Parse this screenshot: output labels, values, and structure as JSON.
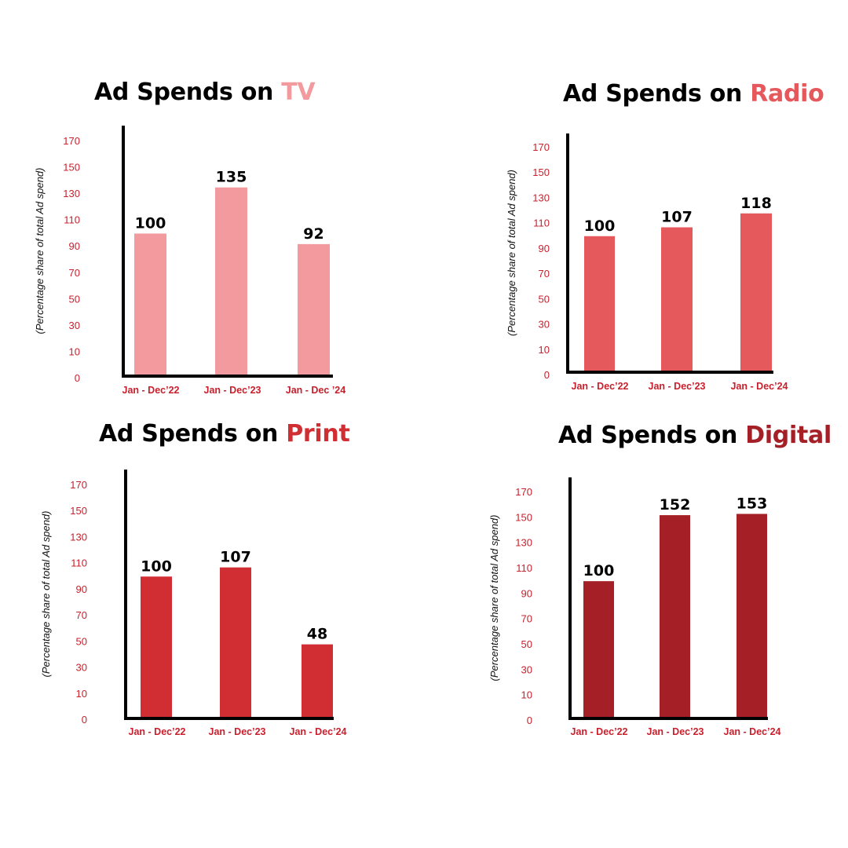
{
  "chart_data": [
    {
      "type": "bar",
      "title_prefix": "Ad Spends on ",
      "title_accent": "TV",
      "accent_color": "#f29a9d",
      "bar_color": "#f29a9d",
      "categories": [
        "Jan - Dec’22",
        "Jan - Dec’23",
        "Jan - Dec ’24"
      ],
      "values": [
        100,
        135,
        92
      ],
      "ylabel": "(Percentage share of total Ad spend)",
      "yticks": [
        0,
        10,
        30,
        50,
        70,
        90,
        110,
        130,
        150,
        170
      ],
      "ylim": [
        0,
        180
      ]
    },
    {
      "type": "bar",
      "title_prefix": "Ad Spends on ",
      "title_accent": "Radio",
      "accent_color": "#e5585c",
      "bar_color": "#e5585c",
      "categories": [
        "Jan - Dec’22",
        "Jan - Dec’23",
        "Jan - Dec’24"
      ],
      "values": [
        100,
        107,
        118
      ],
      "ylabel": "(Percentage share of total Ad spend)",
      "yticks": [
        0,
        10,
        30,
        50,
        70,
        90,
        110,
        130,
        150,
        170
      ],
      "ylim": [
        0,
        180
      ]
    },
    {
      "type": "bar",
      "title_prefix": "Ad Spends on ",
      "title_accent": "Print",
      "accent_color": "#d12e34",
      "bar_color": "#d12e34",
      "categories": [
        "Jan - Dec’22",
        "Jan - Dec’23",
        "Jan - Dec’24"
      ],
      "values": [
        100,
        107,
        48
      ],
      "ylabel": "(Percentage share of total Ad spend)",
      "yticks": [
        0,
        10,
        30,
        50,
        70,
        90,
        110,
        130,
        150,
        170
      ],
      "ylim": [
        0,
        180
      ]
    },
    {
      "type": "bar",
      "title_prefix": "Ad Spends on ",
      "title_accent": "Digital",
      "accent_color": "#a51f26",
      "bar_color": "#a51f26",
      "categories": [
        "Jan - Dec’22",
        "Jan - Dec’23",
        "Jan - Dec’24"
      ],
      "values": [
        100,
        152,
        153
      ],
      "ylabel": "(Percentage share of total Ad spend)",
      "yticks": [
        0,
        10,
        30,
        50,
        70,
        90,
        110,
        130,
        150,
        170
      ],
      "ylim": [
        0,
        180
      ]
    }
  ]
}
